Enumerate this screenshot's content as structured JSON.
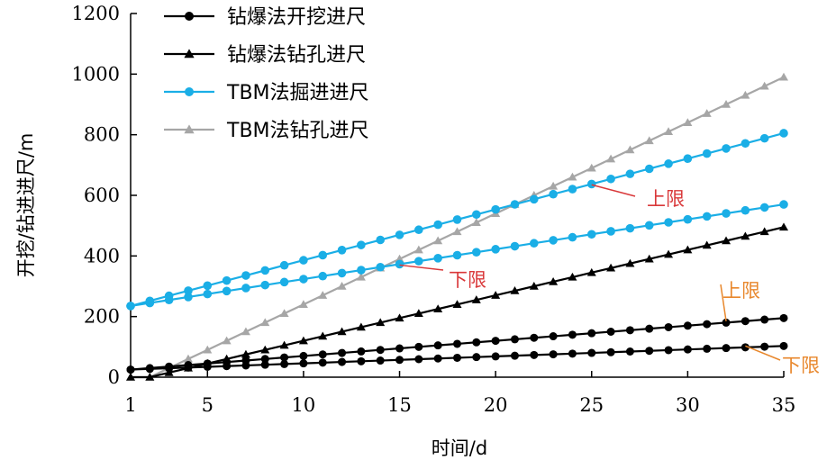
{
  "chart_data": {
    "type": "line",
    "xlabel": "时间/d",
    "ylabel": "开挖/钻进进尺/m",
    "xlim": [
      1,
      35
    ],
    "ylim": [
      0,
      1200
    ],
    "xticks": [
      1,
      5,
      10,
      15,
      20,
      25,
      30,
      35
    ],
    "yticks": [
      0,
      200,
      400,
      600,
      800,
      1000,
      1200
    ],
    "grid": false,
    "legend": "top-left",
    "series": [
      {
        "name": "钻爆法开挖进尺",
        "marker": "circle",
        "color": "#000000",
        "bands": [
          {
            "x": [
              1,
              35
            ],
            "y": [
              25,
              103
            ]
          },
          {
            "x": [
              1,
              35
            ],
            "y": [
              25,
              195
            ]
          }
        ]
      },
      {
        "name": "钻爆法钻孔进尺",
        "marker": "triangle",
        "color": "#000000",
        "bands": [
          {
            "x": [
              1,
              2,
              3,
              35
            ],
            "y": [
              0,
              0,
              15,
              495
            ]
          }
        ]
      },
      {
        "name": "TBM法掘进进尺",
        "marker": "circle",
        "color": "#1aaee6",
        "bands": [
          {
            "x": [
              1,
              35
            ],
            "y": [
              235,
              570
            ]
          },
          {
            "x": [
              1,
              35
            ],
            "y": [
              235,
              805
            ]
          }
        ]
      },
      {
        "name": "TBM法钻孔进尺",
        "marker": "triangle",
        "color": "#a6a6a6",
        "bands": [
          {
            "x": [
              1,
              2,
              3,
              35
            ],
            "y": [
              0,
              0,
              30,
              990
            ]
          }
        ]
      }
    ],
    "annotations": [
      {
        "text": "上限",
        "color": "#d9383a",
        "target": [
          25,
          635
        ]
      },
      {
        "text": "下限",
        "color": "#d9383a",
        "target": [
          15,
          370
        ]
      },
      {
        "text": "上限",
        "color": "#e8872c",
        "target": [
          32,
          185
        ]
      },
      {
        "text": "下限",
        "color": "#e8872c",
        "target": [
          33,
          103
        ]
      }
    ]
  }
}
